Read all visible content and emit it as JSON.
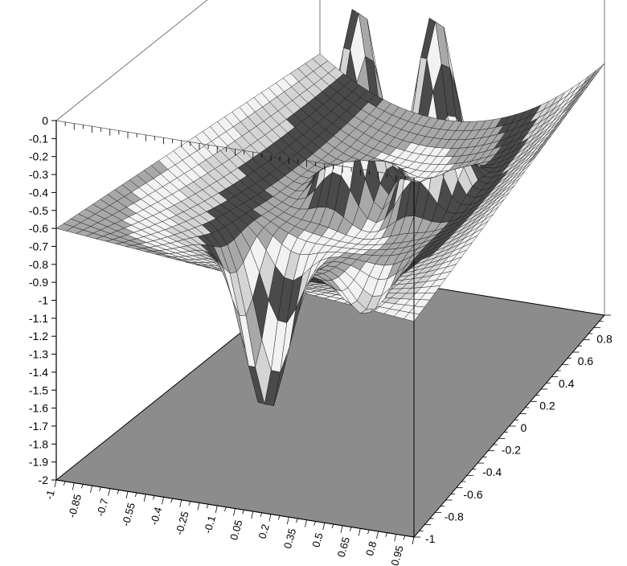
{
  "chart_data": {
    "type": "surface",
    "title": "",
    "xlabel": "",
    "ylabel": "",
    "zlabel": "",
    "x_range": [
      -1,
      1
    ],
    "y_range": [
      -1,
      1
    ],
    "z_range": [
      -2,
      0
    ],
    "z_ticks": [
      "0",
      "-0.1",
      "-0.2",
      "-0.3",
      "-0.4",
      "-0.5",
      "-0.6",
      "-0.7",
      "-0.8",
      "-0.9",
      "-1",
      "-1.1",
      "-1.2",
      "-1.3",
      "-1.4",
      "-1.5",
      "-1.6",
      "-1.7",
      "-1.8",
      "-1.9",
      "-2"
    ],
    "x_ticks": [
      "-1",
      "-0.85",
      "-0.7",
      "-0.55",
      "-0.4",
      "-0.25",
      "-0.1",
      "0.05",
      "0.2",
      "0.35",
      "0.5",
      "0.65",
      "0.8",
      "0.95"
    ],
    "y_ticks": [
      "-1",
      "-0.8",
      "-0.6",
      "-0.4",
      "-0.2",
      "0",
      "0.2",
      "0.4",
      "0.6",
      "0.8"
    ],
    "surface_description": "Saddle-like base surface with two upward peaks and two downward wells",
    "features": [
      {
        "kind": "peak",
        "x": -0.2,
        "y": 0.35,
        "z": -0.02
      },
      {
        "kind": "peak",
        "x": 0.3,
        "y": 0.35,
        "z": 0.0
      },
      {
        "kind": "well",
        "x": -0.25,
        "y": -0.35,
        "z": -1.9
      },
      {
        "kind": "well",
        "x": 0.35,
        "y": -0.35,
        "z": -1.25
      }
    ],
    "colors": {
      "floor": "#8c8c8c",
      "band_light": "#f2f2f2",
      "band_mid": "#a8a8a8",
      "band_dark": "#4a4a4a",
      "mesh": "#1a1a1a"
    }
  }
}
